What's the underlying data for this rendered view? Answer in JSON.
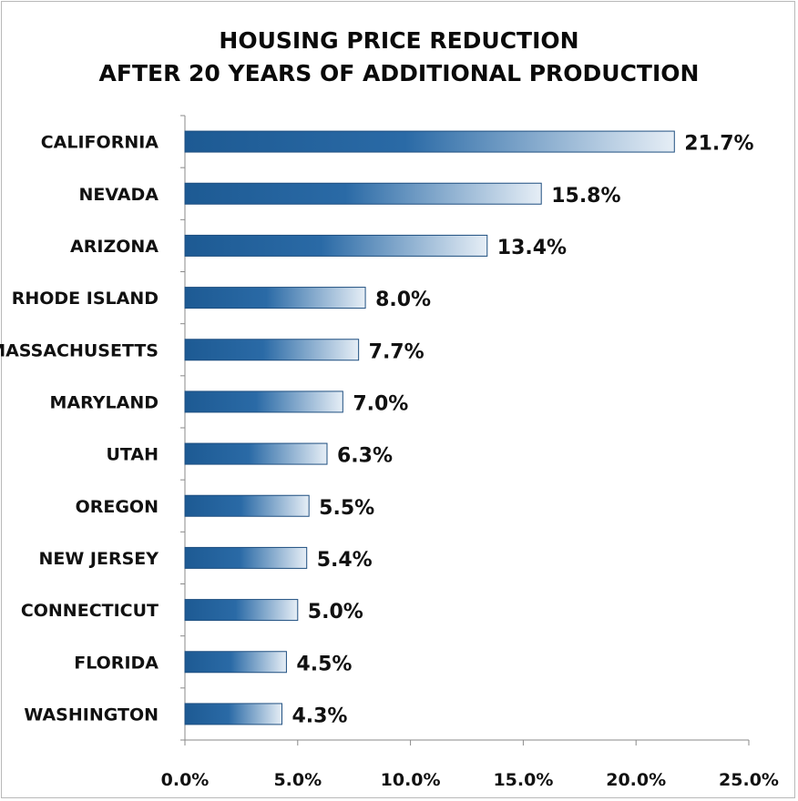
{
  "chart_data": {
    "type": "bar",
    "orientation": "horizontal",
    "title_lines": [
      "HOUSING PRICE REDUCTION",
      "AFTER 20 YEARS OF ADDITIONAL PRODUCTION"
    ],
    "categories": [
      "CALIFORNIA",
      "NEVADA",
      "ARIZONA",
      "RHODE ISLAND",
      "MASSACHUSETTS",
      "MARYLAND",
      "UTAH",
      "OREGON",
      "NEW JERSEY",
      "CONNECTICUT",
      "FLORIDA",
      "WASHINGTON"
    ],
    "values": [
      21.7,
      15.8,
      13.4,
      8.0,
      7.7,
      7.0,
      6.3,
      5.5,
      5.4,
      5.0,
      4.5,
      4.3
    ],
    "value_labels": [
      "21.7%",
      "15.8%",
      "13.4%",
      "8.0%",
      "7.7%",
      "7.0%",
      "6.3%",
      "5.5%",
      "5.4%",
      "5.0%",
      "4.5%",
      "4.3%"
    ],
    "x_ticks": [
      0,
      5,
      10,
      15,
      20,
      25
    ],
    "x_tick_labels": [
      "0.0%",
      "5.0%",
      "10.0%",
      "15.0%",
      "20.0%",
      "25.0%"
    ],
    "xlim": [
      0,
      25
    ],
    "xlabel": "",
    "ylabel": "",
    "grid": false,
    "legend": "none",
    "colors": {
      "bar_dark": "#1d5a93",
      "bar_light": "#e6eef6",
      "bar_edge": "#1f4f80",
      "axis": "#8a8a8a",
      "text": "#111111"
    }
  }
}
